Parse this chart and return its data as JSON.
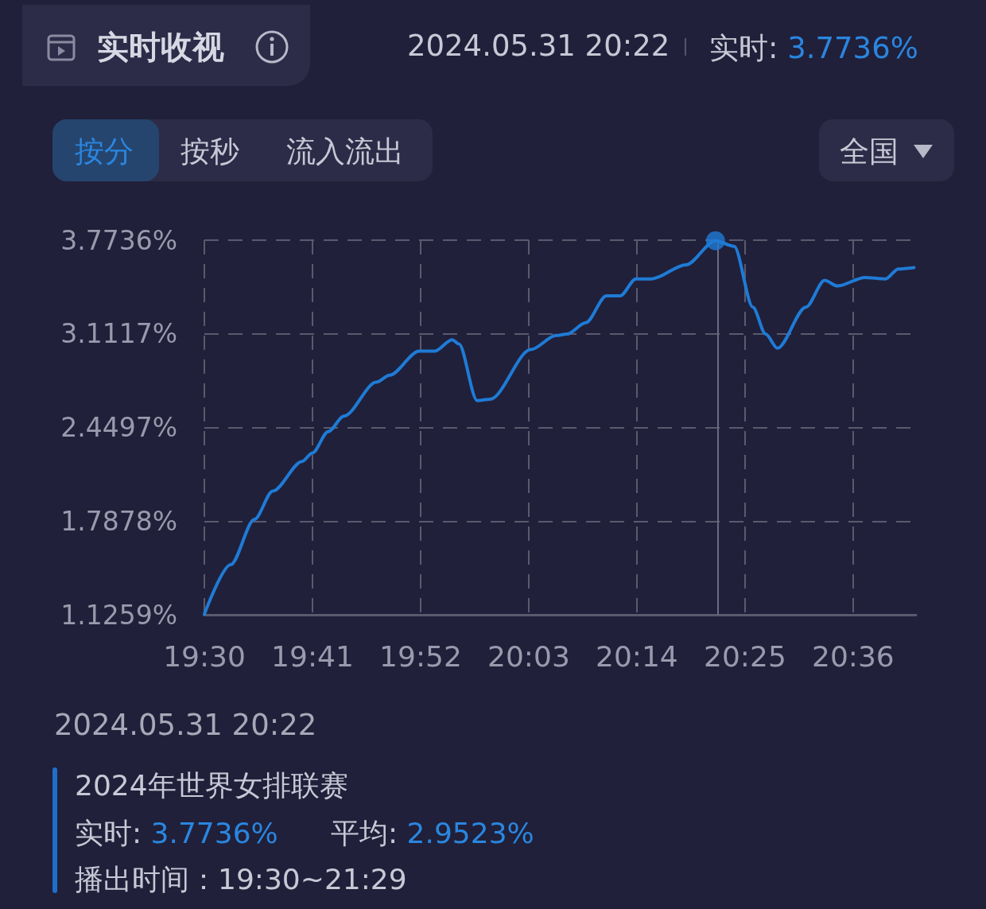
{
  "chart_data": {
    "type": "line",
    "title": "实时收视",
    "x": [
      19.5,
      19.5447,
      19.585,
      19.616,
      19.6658,
      19.6833,
      19.71,
      19.7367,
      19.7917,
      19.8142,
      19.8642,
      19.891,
      19.92,
      19.9317,
      19.9625,
      19.985,
      20.0533,
      20.0967,
      20.115,
      20.1467,
      20.1817,
      20.205,
      20.2317,
      20.2583,
      20.3167,
      20.3667,
      20.3983,
      20.43,
      20.4517,
      20.4717,
      20.52,
      20.5517,
      20.5733,
      20.62,
      20.655,
      20.6767,
      20.7033
    ],
    "series": [
      {
        "color": "#1f7bd6",
        "values": [
          1.13,
          1.48,
          1.8,
          2.0,
          2.21,
          2.27,
          2.42,
          2.53,
          2.77,
          2.82,
          2.99,
          2.99,
          3.07,
          3.04,
          2.64,
          2.65,
          3.0,
          3.1,
          3.11,
          3.19,
          3.38,
          3.38,
          3.5,
          3.5,
          3.6,
          3.77,
          3.73,
          3.3,
          3.11,
          3.01,
          3.3,
          3.49,
          3.45,
          3.51,
          3.5,
          3.57,
          3.58
        ]
      },
      {
        "type": "scatter",
        "marker": "circle",
        "color": "#1f7bd6",
        "x": [
          20.3667
        ],
        "values": [
          3.77
        ]
      }
    ],
    "xlim": [
      19.5,
      20.7067
    ],
    "xticks": [
      {
        "value": 19.5,
        "label": "19:30"
      },
      {
        "value": 19.6833,
        "label": "19:41"
      },
      {
        "value": 19.8667,
        "label": "19:52"
      },
      {
        "value": 20.05,
        "label": "20:03"
      },
      {
        "value": 20.2333,
        "label": "20:14"
      },
      {
        "value": 20.4167,
        "label": "20:25"
      },
      {
        "value": 20.6,
        "label": "20:36"
      }
    ],
    "ylim": [
      1.1259,
      3.7736
    ],
    "yticks": [
      {
        "value": 1.1259,
        "label": "1.1259%"
      },
      {
        "value": 1.7878,
        "label": "1.7878%"
      },
      {
        "value": 2.4497,
        "label": "2.4497%"
      },
      {
        "value": 3.1117,
        "label": "3.1117%"
      },
      {
        "value": 3.7736,
        "label": "3.7736%"
      }
    ],
    "ref_lines": [
      {
        "axis": "x",
        "value": 20.3667,
        "color": "#6b6b80"
      }
    ],
    "grid": true,
    "marker": "none",
    "line_style": "solid",
    "annotations": [
      "2024.05.31 20:22",
      "实时: 3.7736%",
      "按分",
      "按秒",
      "流入流出",
      "全国",
      "2024.05.31 20:22",
      "2024年世界女排联赛",
      "实时: 3.7736%",
      "平均: 2.9523%",
      "播出时间：19:30~21:29"
    ]
  }
}
